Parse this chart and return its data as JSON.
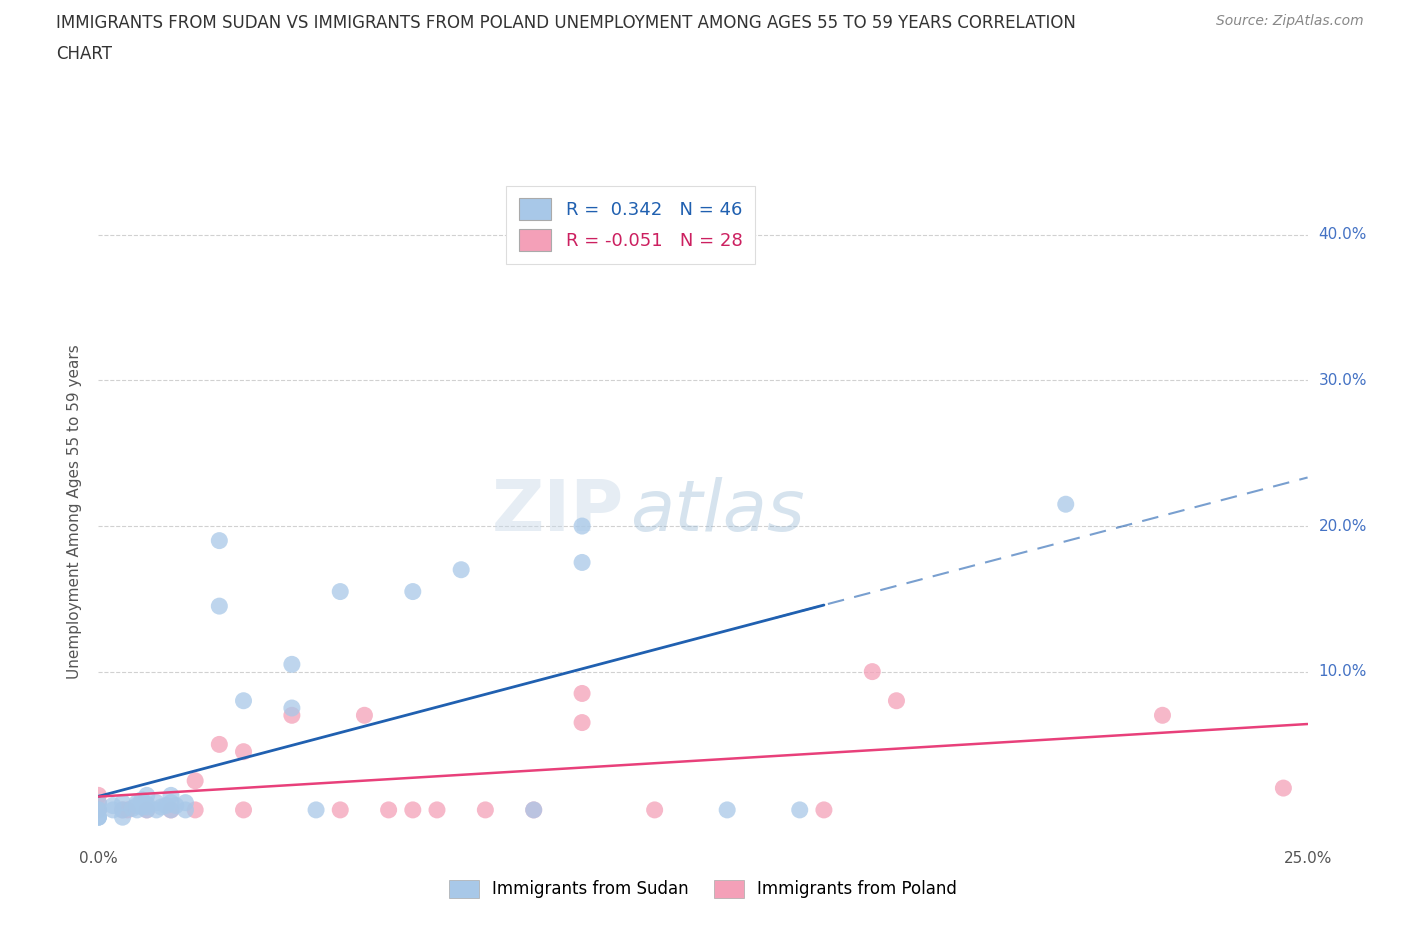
{
  "title_line1": "IMMIGRANTS FROM SUDAN VS IMMIGRANTS FROM POLAND UNEMPLOYMENT AMONG AGES 55 TO 59 YEARS CORRELATION",
  "title_line2": "CHART",
  "source": "Source: ZipAtlas.com",
  "ylabel": "Unemployment Among Ages 55 to 59 years",
  "xlim": [
    0.0,
    0.25
  ],
  "ylim": [
    -0.02,
    0.44
  ],
  "xticks": [
    0.0,
    0.05,
    0.1,
    0.15,
    0.2,
    0.25
  ],
  "yticks": [
    0.0,
    0.1,
    0.2,
    0.3,
    0.4
  ],
  "sudan_color": "#a8c8e8",
  "poland_color": "#f4a0b8",
  "sudan_R": 0.342,
  "sudan_N": 46,
  "poland_R": -0.051,
  "poland_N": 28,
  "sudan_line_color": "#2060b0",
  "poland_line_color": "#e8407a",
  "sudan_scatter_x": [
    0.0,
    0.0,
    0.0,
    0.0,
    0.0,
    0.0,
    0.003,
    0.003,
    0.005,
    0.005,
    0.005,
    0.007,
    0.008,
    0.008,
    0.008,
    0.009,
    0.009,
    0.01,
    0.01,
    0.01,
    0.01,
    0.012,
    0.012,
    0.013,
    0.014,
    0.015,
    0.015,
    0.015,
    0.016,
    0.018,
    0.018,
    0.025,
    0.025,
    0.03,
    0.04,
    0.04,
    0.045,
    0.05,
    0.065,
    0.075,
    0.09,
    0.1,
    0.1,
    0.13,
    0.145,
    0.2
  ],
  "sudan_scatter_y": [
    0.0,
    0.0,
    0.0,
    0.005,
    0.005,
    0.01,
    0.005,
    0.008,
    0.0,
    0.005,
    0.01,
    0.006,
    0.005,
    0.008,
    0.01,
    0.007,
    0.012,
    0.005,
    0.007,
    0.009,
    0.015,
    0.005,
    0.01,
    0.007,
    0.008,
    0.005,
    0.01,
    0.015,
    0.008,
    0.005,
    0.01,
    0.19,
    0.145,
    0.08,
    0.075,
    0.105,
    0.005,
    0.155,
    0.155,
    0.17,
    0.005,
    0.2,
    0.175,
    0.005,
    0.005,
    0.215
  ],
  "poland_scatter_x": [
    0.0,
    0.0,
    0.0,
    0.005,
    0.006,
    0.01,
    0.015,
    0.02,
    0.02,
    0.025,
    0.03,
    0.03,
    0.04,
    0.05,
    0.055,
    0.06,
    0.065,
    0.07,
    0.08,
    0.09,
    0.1,
    0.1,
    0.115,
    0.15,
    0.16,
    0.165,
    0.22,
    0.245
  ],
  "poland_scatter_y": [
    0.005,
    0.01,
    0.015,
    0.005,
    0.005,
    0.005,
    0.005,
    0.005,
    0.025,
    0.05,
    0.005,
    0.045,
    0.07,
    0.005,
    0.07,
    0.005,
    0.005,
    0.005,
    0.005,
    0.005,
    0.065,
    0.085,
    0.005,
    0.005,
    0.1,
    0.08,
    0.07,
    0.02
  ],
  "background_color": "#ffffff",
  "grid_color": "#cccccc",
  "watermark_zip": "ZIP",
  "watermark_atlas": "atlas"
}
